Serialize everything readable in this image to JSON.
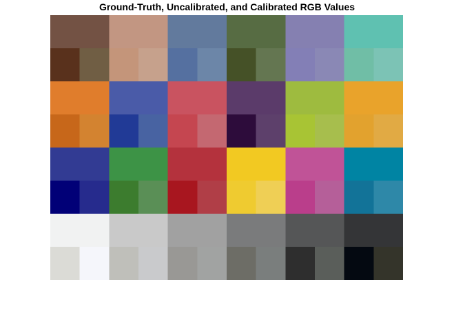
{
  "chart_data": {
    "type": "heatmap",
    "title": "Ground-Truth, Uncalibrated, and Calibrated RGB Values",
    "grid": false,
    "legend": "none",
    "patches": [
      {
        "row": 0,
        "col": 0,
        "ground_truth": "#735244",
        "uncalibrated": "#59311c",
        "calibrated": "#705e44"
      },
      {
        "row": 0,
        "col": 1,
        "ground_truth": "#c29682",
        "uncalibrated": "#c4957a",
        "calibrated": "#c6a18c"
      },
      {
        "row": 0,
        "col": 2,
        "ground_truth": "#627a9d",
        "uncalibrated": "#5570a0",
        "calibrated": "#6c86a8"
      },
      {
        "row": 0,
        "col": 3,
        "ground_truth": "#576c43",
        "uncalibrated": "#455127",
        "calibrated": "#647651"
      },
      {
        "row": 0,
        "col": 4,
        "ground_truth": "#8580b1",
        "uncalibrated": "#837fb6",
        "calibrated": "#8a88b5"
      },
      {
        "row": 0,
        "col": 5,
        "ground_truth": "#5fc1b1",
        "uncalibrated": "#70bea6",
        "calibrated": "#7cc3b5"
      },
      {
        "row": 1,
        "col": 0,
        "ground_truth": "#e07d2c",
        "uncalibrated": "#c7671a",
        "calibrated": "#d38330"
      },
      {
        "row": 1,
        "col": 1,
        "ground_truth": "#4a5ba8",
        "uncalibrated": "#213a96",
        "calibrated": "#4863a2"
      },
      {
        "row": 1,
        "col": 2,
        "ground_truth": "#c95360",
        "uncalibrated": "#c54650",
        "calibrated": "#c46871"
      },
      {
        "row": 1,
        "col": 3,
        "ground_truth": "#5b3b6a",
        "uncalibrated": "#2d0c3b",
        "calibrated": "#5d406b"
      },
      {
        "row": 1,
        "col": 4,
        "ground_truth": "#9ebb3f",
        "uncalibrated": "#a8c434",
        "calibrated": "#a7be4d"
      },
      {
        "row": 1,
        "col": 5,
        "ground_truth": "#e9a32b",
        "uncalibrated": "#e2a22e",
        "calibrated": "#e1aa44"
      },
      {
        "row": 2,
        "col": 0,
        "ground_truth": "#323b93",
        "uncalibrated": "#010077",
        "calibrated": "#262b8d"
      },
      {
        "row": 2,
        "col": 1,
        "ground_truth": "#3d9346",
        "uncalibrated": "#3c7c2e",
        "calibrated": "#5a8f56"
      },
      {
        "row": 2,
        "col": 2,
        "ground_truth": "#b4323d",
        "uncalibrated": "#a8161f",
        "calibrated": "#b03e47"
      },
      {
        "row": 2,
        "col": 3,
        "ground_truth": "#f2c922",
        "uncalibrated": "#efcb30",
        "calibrated": "#efcf55"
      },
      {
        "row": 2,
        "col": 4,
        "ground_truth": "#c05397",
        "uncalibrated": "#ba3e8b",
        "calibrated": "#b55f99"
      },
      {
        "row": 2,
        "col": 5,
        "ground_truth": "#0084a3",
        "uncalibrated": "#127398",
        "calibrated": "#2e88a8"
      },
      {
        "row": 3,
        "col": 0,
        "ground_truth": "#f1f2f2",
        "uncalibrated": "#dbdbd6",
        "calibrated": "#f5f6fb"
      },
      {
        "row": 3,
        "col": 1,
        "ground_truth": "#c9c9c9",
        "uncalibrated": "#bfbfba",
        "calibrated": "#c9cacc"
      },
      {
        "row": 3,
        "col": 2,
        "ground_truth": "#a1a1a1",
        "uncalibrated": "#999895",
        "calibrated": "#a1a3a2"
      },
      {
        "row": 3,
        "col": 3,
        "ground_truth": "#7a7b7c",
        "uncalibrated": "#6d6d66",
        "calibrated": "#7a7e7d"
      },
      {
        "row": 3,
        "col": 4,
        "ground_truth": "#555657",
        "uncalibrated": "#2e2e2e",
        "calibrated": "#5a5e5a"
      },
      {
        "row": 3,
        "col": 5,
        "ground_truth": "#343537",
        "uncalibrated": "#040911",
        "calibrated": "#34342a"
      }
    ]
  }
}
